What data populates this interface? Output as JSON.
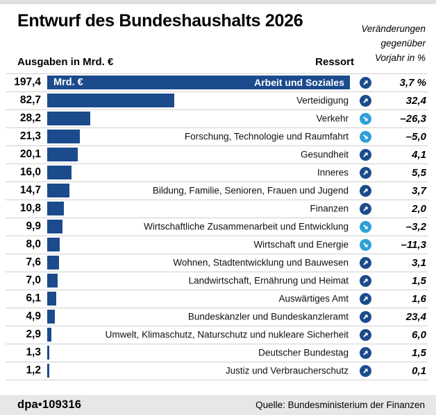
{
  "header": {
    "title": "Entwurf des Bundeshaushalts 2026",
    "annotation_lines": [
      "Veränderungen",
      "gegenüber",
      "Vorjahr in %"
    ],
    "col_left": "Ausgaben in Mrd. €",
    "col_right": "Ressort"
  },
  "first_bar": {
    "unit_label": "Mrd. €"
  },
  "footer": {
    "dpa_id": "dpa•109316",
    "source": "Quelle: Bundesministerium der Finanzen"
  },
  "colors": {
    "bar_dark_blue": "#1c4b8d",
    "arrow_down_light_blue": "#2f9fd8",
    "separator": "#cfcfcf",
    "footer_bg": "#e7e7e7"
  },
  "chart_data": {
    "type": "bar",
    "orientation": "horizontal",
    "title": "Entwurf des Bundeshaushalts 2026",
    "value_unit": "Mrd. €",
    "value_axis_label": "Ausgaben in Mrd. €",
    "category_axis_label": "Ressort",
    "change_column_label": "Veränderungen gegenüber Vorjahr in %",
    "xlim": [
      0,
      197.4
    ],
    "rows": [
      {
        "value": 197.4,
        "value_label": "197,4",
        "ressort": "Arbeit und Soziales",
        "change_label": "3,7 %",
        "change": 3.7,
        "direction": "up"
      },
      {
        "value": 82.7,
        "value_label": "82,7",
        "ressort": "Verteidigung",
        "change_label": "32,4",
        "change": 32.4,
        "direction": "up"
      },
      {
        "value": 28.2,
        "value_label": "28,2",
        "ressort": "Verkehr",
        "change_label": "–26,3",
        "change": -26.3,
        "direction": "down"
      },
      {
        "value": 21.3,
        "value_label": "21,3",
        "ressort": "Forschung, Technologie und Raumfahrt",
        "change_label": "–5,0",
        "change": -5.0,
        "direction": "down"
      },
      {
        "value": 20.1,
        "value_label": "20,1",
        "ressort": "Gesundheit",
        "change_label": "4,1",
        "change": 4.1,
        "direction": "up"
      },
      {
        "value": 16.0,
        "value_label": "16,0",
        "ressort": "Inneres",
        "change_label": "5,5",
        "change": 5.5,
        "direction": "up"
      },
      {
        "value": 14.7,
        "value_label": "14,7",
        "ressort": "Bildung, Familie, Senioren, Frauen und Jugend",
        "change_label": "3,7",
        "change": 3.7,
        "direction": "up"
      },
      {
        "value": 10.8,
        "value_label": "10,8",
        "ressort": "Finanzen",
        "change_label": "2,0",
        "change": 2.0,
        "direction": "up"
      },
      {
        "value": 9.9,
        "value_label": "9,9",
        "ressort": "Wirtschaftliche Zusammenarbeit und Entwicklung",
        "change_label": "–3,2",
        "change": -3.2,
        "direction": "down"
      },
      {
        "value": 8.0,
        "value_label": "8,0",
        "ressort": "Wirtschaft und Energie",
        "change_label": "–11,3",
        "change": -11.3,
        "direction": "down"
      },
      {
        "value": 7.6,
        "value_label": "7,6",
        "ressort": "Wohnen, Stadtentwicklung und Bauwesen",
        "change_label": "3,1",
        "change": 3.1,
        "direction": "up"
      },
      {
        "value": 7.0,
        "value_label": "7,0",
        "ressort": "Landwirtschaft, Ernährung und Heimat",
        "change_label": "1,5",
        "change": 1.5,
        "direction": "up"
      },
      {
        "value": 6.1,
        "value_label": "6,1",
        "ressort": "Auswärtiges Amt",
        "change_label": "1,6",
        "change": 1.6,
        "direction": "up"
      },
      {
        "value": 4.9,
        "value_label": "4,9",
        "ressort": "Bundeskanzler und Bundeskanzleramt",
        "change_label": "23,4",
        "change": 23.4,
        "direction": "up"
      },
      {
        "value": 2.9,
        "value_label": "2,9",
        "ressort": "Umwelt, Klimaschutz, Naturschutz und nukleare Sicherheit",
        "change_label": "6,0",
        "change": 6.0,
        "direction": "up"
      },
      {
        "value": 1.3,
        "value_label": "1,3",
        "ressort": "Deutscher Bundestag",
        "change_label": "1,5",
        "change": 1.5,
        "direction": "up"
      },
      {
        "value": 1.2,
        "value_label": "1,2",
        "ressort": "Justiz und Verbraucherschutz",
        "change_label": "0,1",
        "change": 0.1,
        "direction": "up"
      }
    ]
  }
}
